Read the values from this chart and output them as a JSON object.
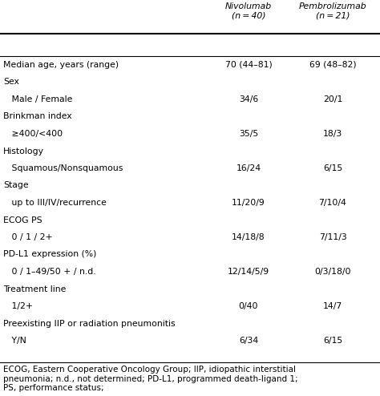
{
  "header_col2": "Nivolumab\n(n = 40)",
  "header_col3": "Pembrolizumab\n(n = 21)",
  "rows": [
    {
      "label": "Median age, years (range)",
      "indent": false,
      "val2": "70 (44–81)",
      "val3": "69 (48–82)"
    },
    {
      "label": "Sex",
      "indent": false,
      "val2": "",
      "val3": ""
    },
    {
      "label": "   Male / Female",
      "indent": true,
      "val2": "34/6",
      "val3": "20/1"
    },
    {
      "label": "Brinkman index",
      "indent": false,
      "val2": "",
      "val3": ""
    },
    {
      "label": "   ≥400/<400",
      "indent": true,
      "val2": "35/5",
      "val3": "18/3"
    },
    {
      "label": "Histology",
      "indent": false,
      "val2": "",
      "val3": ""
    },
    {
      "label": "   Squamous/Nonsquamous",
      "indent": true,
      "val2": "16/24",
      "val3": "6/15"
    },
    {
      "label": "Stage",
      "indent": false,
      "val2": "",
      "val3": ""
    },
    {
      "label": "   up to III/IV/recurrence",
      "indent": true,
      "val2": "11/20/9",
      "val3": "7/10/4"
    },
    {
      "label": "ECOG PS",
      "indent": false,
      "val2": "",
      "val3": ""
    },
    {
      "label": "   0 / 1 / 2+",
      "indent": true,
      "val2": "14/18/8",
      "val3": "7/11/3"
    },
    {
      "label": "PD-L1 expression (%)",
      "indent": false,
      "val2": "",
      "val3": ""
    },
    {
      "label": "   0 / 1–49/50 + / n.d.",
      "indent": true,
      "val2": "12/14/5/9",
      "val3": "0/3/18/0"
    },
    {
      "label": "Treatment line",
      "indent": false,
      "val2": "",
      "val3": ""
    },
    {
      "label": "   1/2+",
      "indent": true,
      "val2": "0/40",
      "val3": "14/7"
    },
    {
      "label": "Preexisting IIP or radiation pneumonitis",
      "indent": false,
      "val2": "",
      "val3": ""
    },
    {
      "label": "   Y/N",
      "indent": true,
      "val2": "6/34",
      "val3": "6/15"
    }
  ],
  "footnote": "ECOG, Eastern Cooperative Oncology Group; IIP, idiopathic interstitial\npneumonia; n.d., not determined; PD-L1, programmed death-ligand 1;\nPS, performance status;",
  "bg_color": "#ffffff",
  "text_color": "#000000",
  "font_size": 7.8,
  "footnote_font_size": 7.5
}
